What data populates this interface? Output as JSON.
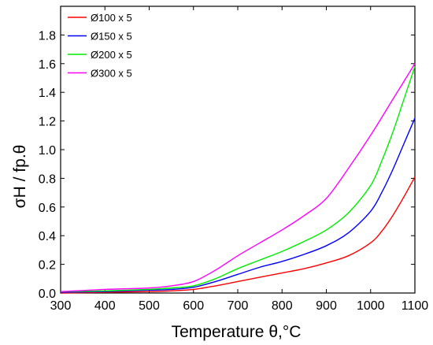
{
  "chart_data": {
    "type": "line",
    "xlabel": "Temperature θ,°C",
    "ylabel": "σH / fp.θ",
    "xlim": [
      300,
      1100
    ],
    "ylim": [
      0,
      2.0
    ],
    "xticks": [
      300,
      400,
      500,
      600,
      700,
      800,
      900,
      1000,
      1100
    ],
    "yticks": [
      0.0,
      0.2,
      0.4,
      0.6,
      0.8,
      1.0,
      1.2,
      1.4,
      1.6,
      1.8
    ],
    "ytick_labels": [
      "0.0",
      "0.2",
      "0.4",
      "0.6",
      "0.8",
      "1.0",
      "1.2",
      "1.4",
      "1.6",
      "1.8"
    ],
    "grid": false,
    "legend_position": "top-left",
    "series": [
      {
        "name": "Ø100 x 5",
        "color": "#ff0000",
        "x": [
          300,
          400,
          500,
          550,
          600,
          650,
          700,
          750,
          800,
          850,
          900,
          950,
          1000,
          1025,
          1050,
          1075,
          1100
        ],
        "y": [
          0.0,
          0.005,
          0.01,
          0.015,
          0.025,
          0.05,
          0.08,
          0.11,
          0.14,
          0.17,
          0.21,
          0.26,
          0.35,
          0.43,
          0.54,
          0.67,
          0.81
        ]
      },
      {
        "name": "Ø150 x 5",
        "color": "#0000ff",
        "x": [
          300,
          400,
          500,
          550,
          600,
          650,
          700,
          750,
          800,
          850,
          900,
          950,
          1000,
          1025,
          1050,
          1075,
          1100
        ],
        "y": [
          0.005,
          0.01,
          0.02,
          0.025,
          0.04,
          0.08,
          0.13,
          0.18,
          0.22,
          0.27,
          0.33,
          0.42,
          0.57,
          0.7,
          0.86,
          1.04,
          1.22
        ]
      },
      {
        "name": "Ø200 x 5",
        "color": "#00ee00",
        "x": [
          300,
          400,
          500,
          550,
          600,
          650,
          700,
          750,
          800,
          850,
          900,
          950,
          1000,
          1025,
          1050,
          1075,
          1100
        ],
        "y": [
          0.01,
          0.015,
          0.025,
          0.035,
          0.05,
          0.1,
          0.17,
          0.23,
          0.29,
          0.36,
          0.44,
          0.56,
          0.75,
          0.92,
          1.12,
          1.35,
          1.58
        ]
      },
      {
        "name": "Ø300 x 5",
        "color": "#ff00ff",
        "x": [
          300,
          400,
          500,
          550,
          600,
          650,
          700,
          750,
          800,
          850,
          900,
          950,
          1000,
          1050,
          1100
        ],
        "y": [
          0.01,
          0.025,
          0.035,
          0.05,
          0.08,
          0.16,
          0.26,
          0.35,
          0.44,
          0.54,
          0.66,
          0.87,
          1.1,
          1.35,
          1.6
        ]
      }
    ]
  }
}
